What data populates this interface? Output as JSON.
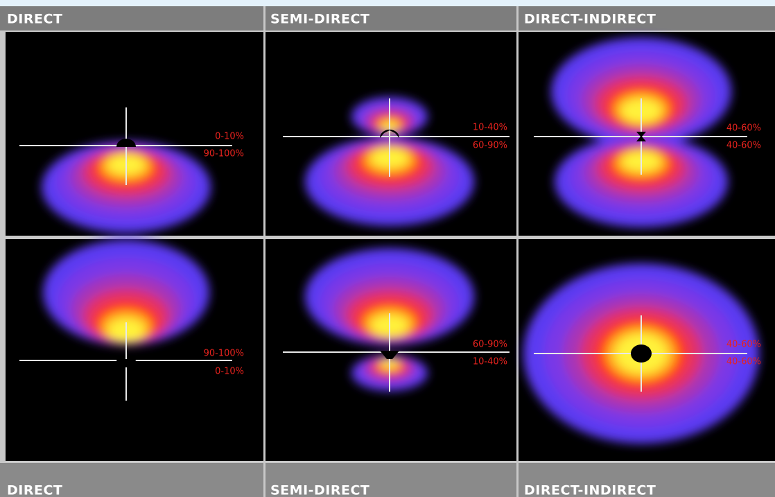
{
  "header": [
    "DIRECT",
    "SEMI-DIRECT",
    "DIRECT-INDIRECT"
  ],
  "panels": [
    [
      [
        "0-10%",
        "90-100%"
      ],
      [
        "10-40%",
        "60-90%"
      ],
      [
        "40-60%",
        "40-60%"
      ]
    ],
    [
      [
        "90-100%",
        "0-10%"
      ],
      [
        "60-90%",
        "10-40%"
      ],
      [
        "40-60%",
        "40-60%"
      ]
    ]
  ],
  "footer": [
    "DIRECT",
    "SEMI-DIRECT",
    "DIRECT-INDIRECT"
  ]
}
